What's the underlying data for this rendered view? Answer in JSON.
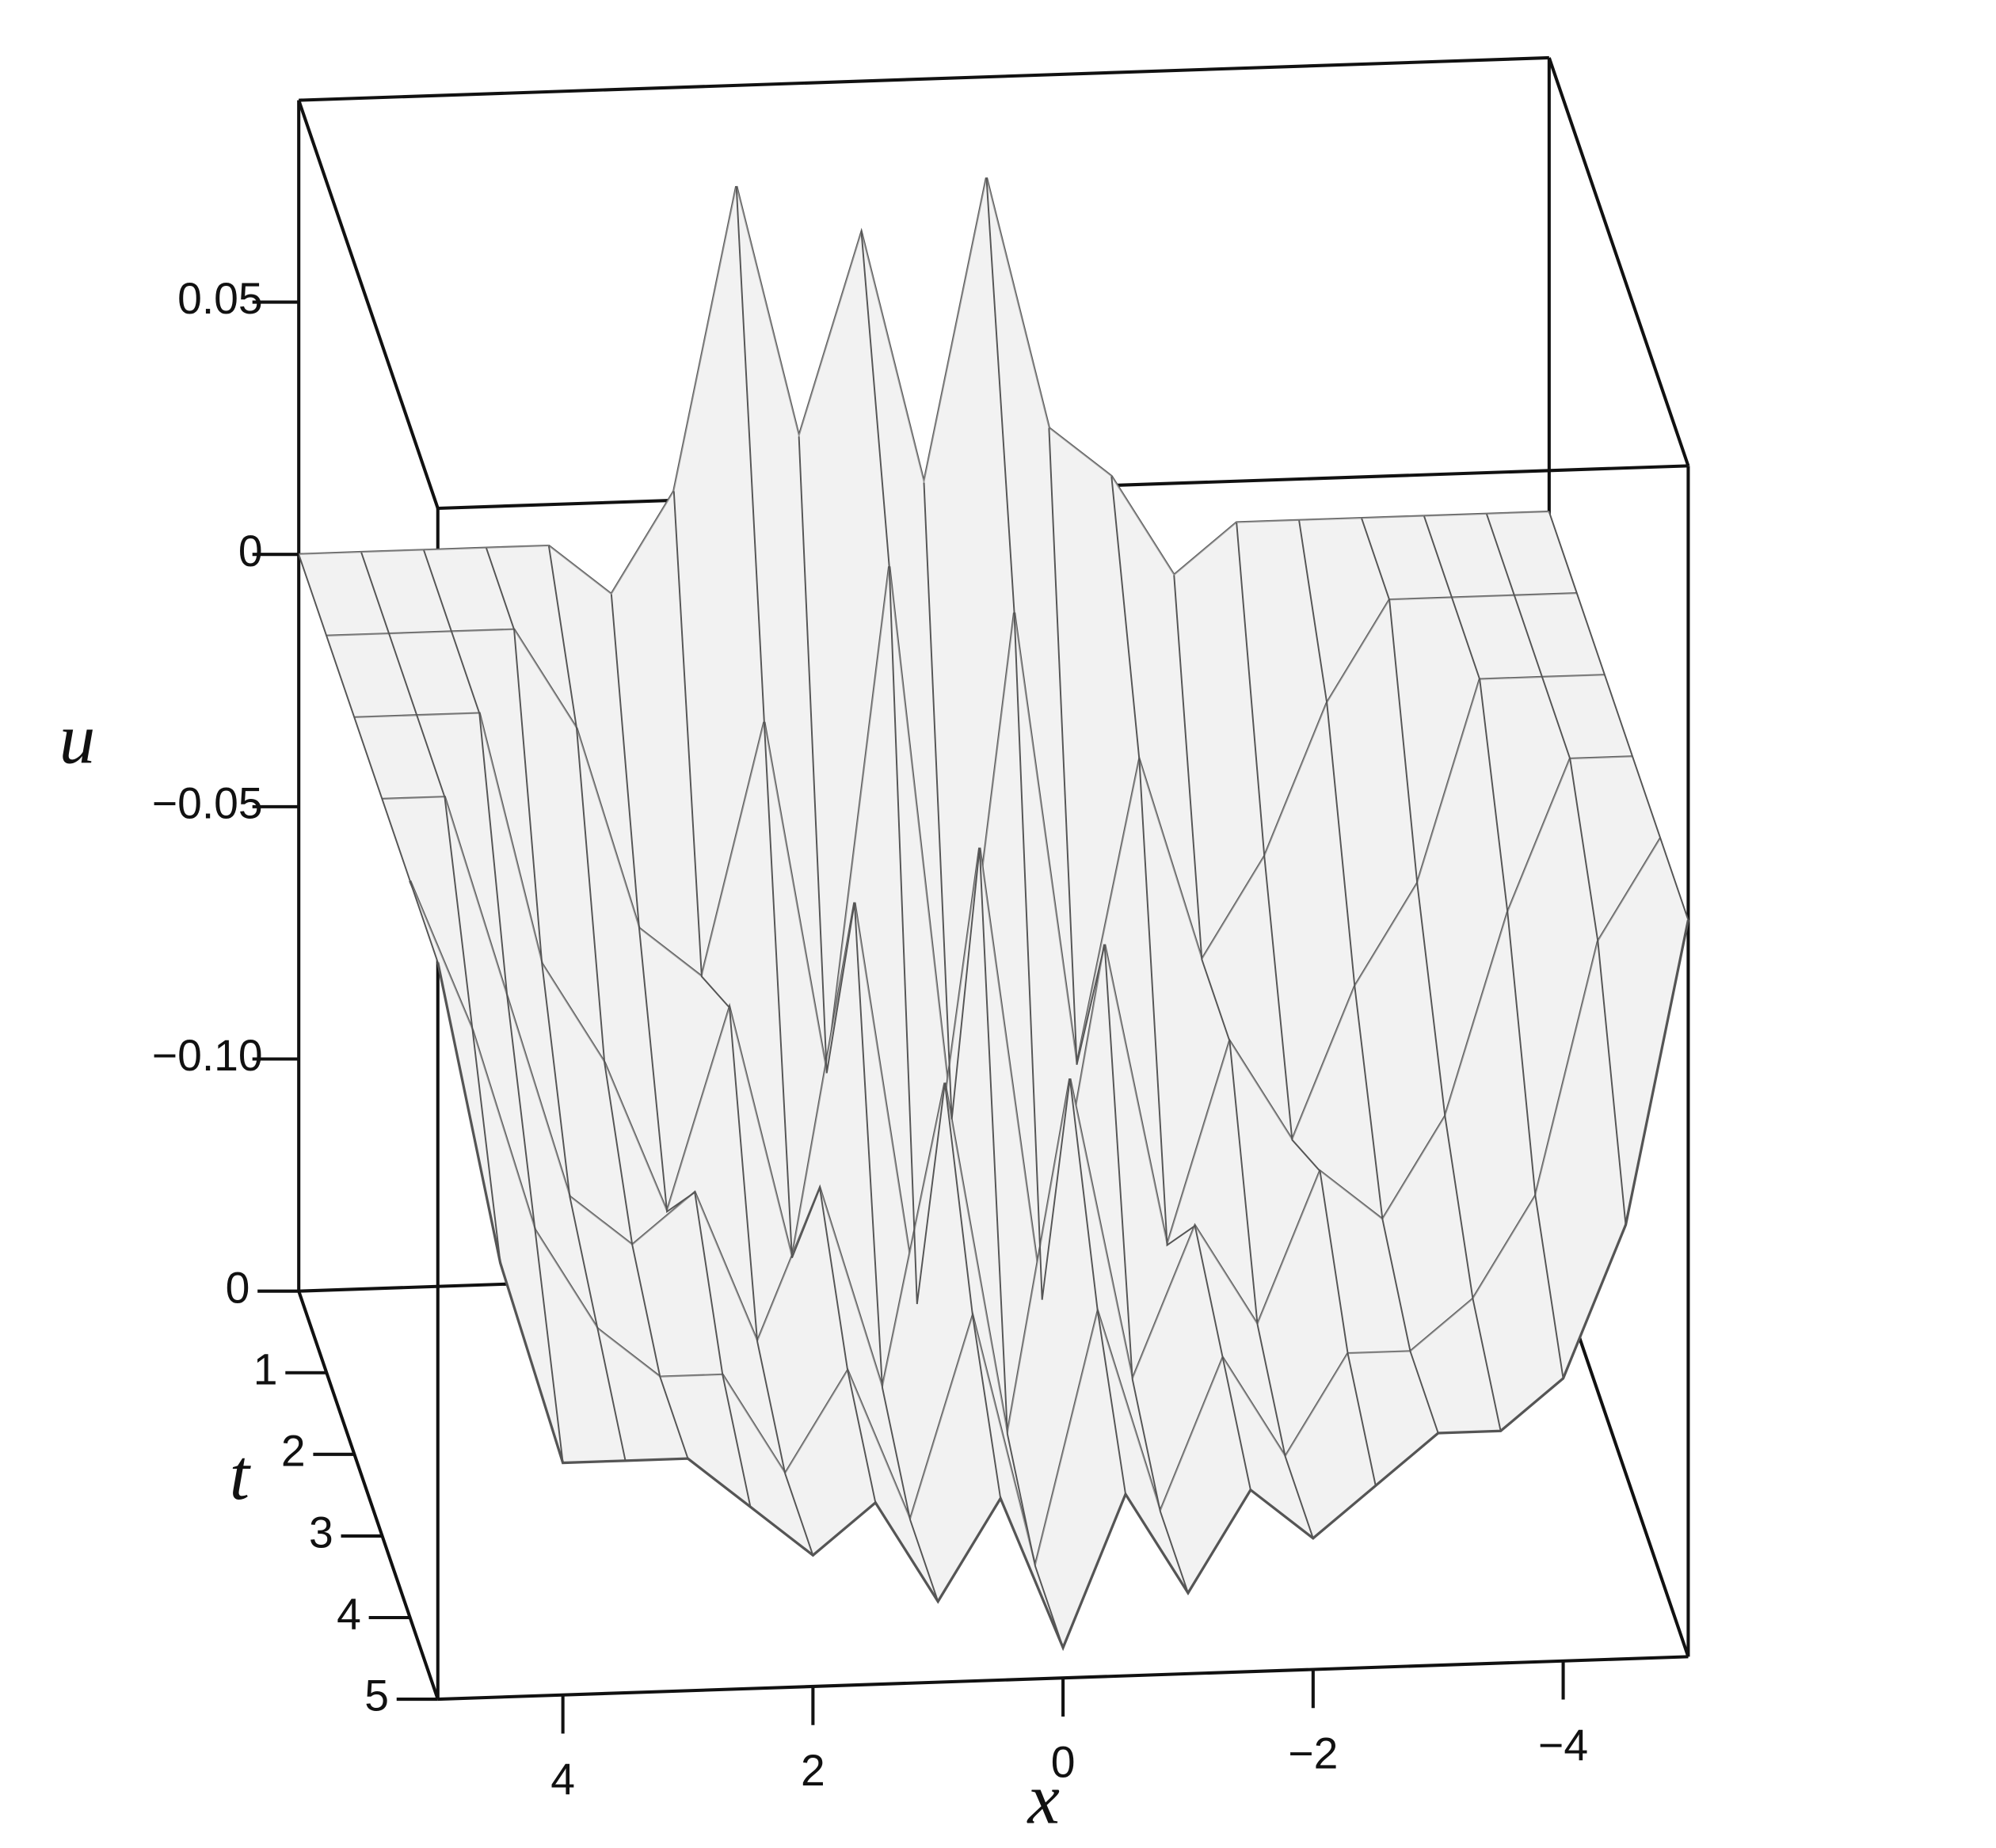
{
  "chart_data": {
    "type": "surface",
    "x": [
      5,
      4.5,
      4,
      3.5,
      3,
      2.5,
      2,
      1.5,
      1,
      0.5,
      0,
      -0.5,
      -1,
      -1.5,
      -2,
      -2.5,
      -3,
      -3.5,
      -4,
      -4.5,
      -5
    ],
    "t": [
      0,
      1,
      2,
      3,
      4,
      5
    ],
    "z": [
      [
        0,
        0,
        0,
        0,
        0,
        -0.01,
        0.01,
        0.07,
        0.02,
        0.06,
        0.01,
        0.07,
        0.02,
        0.01,
        -0.01,
        0,
        0,
        0,
        0,
        0,
        0
      ],
      [
        0,
        0,
        0,
        0,
        -0.02,
        -0.06,
        -0.07,
        -0.02,
        -0.09,
        0.01,
        -0.1,
        0,
        -0.09,
        -0.03,
        -0.07,
        -0.05,
        -0.02,
        0,
        0,
        0,
        0
      ],
      [
        0,
        0,
        0,
        -0.05,
        -0.07,
        -0.1,
        -0.06,
        -0.11,
        -0.04,
        -0.12,
        -0.03,
        -0.12,
        -0.05,
        -0.11,
        -0.07,
        -0.09,
        -0.06,
        -0.04,
        0,
        0,
        0
      ],
      [
        0,
        0,
        -0.04,
        -0.08,
        -0.09,
        -0.08,
        -0.11,
        -0.08,
        -0.12,
        -0.06,
        -0.13,
        -0.06,
        -0.12,
        -0.09,
        -0.11,
        -0.08,
        -0.09,
        -0.07,
        -0.03,
        0,
        0
      ],
      [
        0,
        -0.03,
        -0.07,
        -0.09,
        -0.1,
        -0.1,
        -0.12,
        -0.1,
        -0.13,
        -0.09,
        -0.14,
        -0.09,
        -0.13,
        -0.1,
        -0.12,
        -0.1,
        -0.1,
        -0.09,
        -0.07,
        -0.02,
        0
      ],
      [
        0,
        -0.06,
        -0.1,
        -0.1,
        -0.1,
        -0.11,
        -0.12,
        -0.11,
        -0.13,
        -0.11,
        -0.14,
        -0.11,
        -0.13,
        -0.11,
        -0.12,
        -0.11,
        -0.1,
        -0.1,
        -0.09,
        -0.06,
        0
      ]
    ],
    "xlim": [
      5,
      -5
    ],
    "tlim": [
      0,
      5
    ],
    "zlim": [
      -0.146,
      0.09
    ],
    "xticks": [
      4,
      2,
      0,
      {
        "value": -2,
        "label": "−2"
      },
      {
        "value": -4,
        "label": "−4"
      }
    ],
    "tticks": [
      0,
      1,
      2,
      3,
      4,
      5
    ],
    "zticks": [
      0.05,
      0,
      {
        "value": -0.05,
        "label": "−0.05"
      },
      {
        "value": -0.1,
        "label": "−0.10"
      }
    ],
    "x_label": "x",
    "t_label": "t",
    "z_label": "u",
    "color": "#555555"
  }
}
